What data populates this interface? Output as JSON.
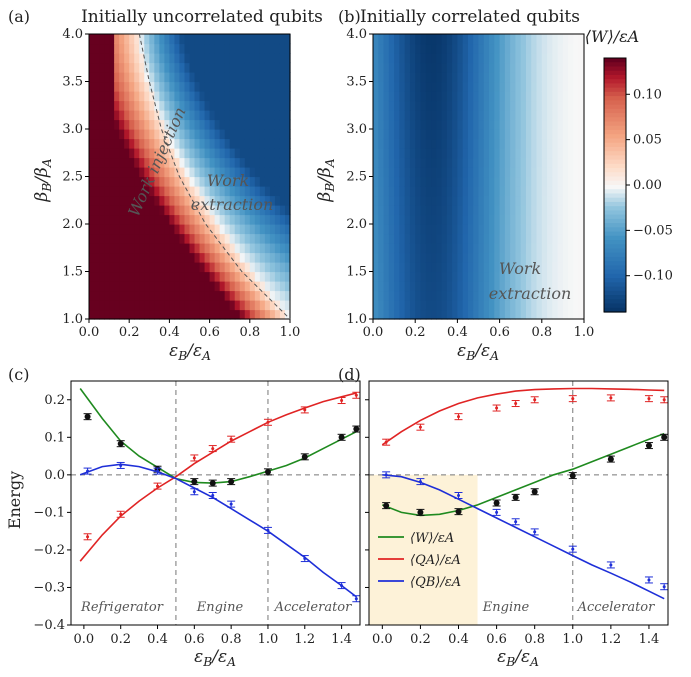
{
  "figure": {
    "panels": [
      "(a)",
      "(b)",
      "(c)",
      "(d)"
    ],
    "titles": {
      "a": "Initially uncorrelated qubits",
      "b": "Initially correlated qubits"
    }
  },
  "colors": {
    "red": "#e02424",
    "blue": "#1e2fd8",
    "green": "#1f8a1f",
    "black": "#111111",
    "highlight": "#fdf2d8",
    "cmap_max": "#67001f",
    "cmap_min": "#053061"
  },
  "chart_data": [
    {
      "panel": "(a)",
      "type": "heatmap",
      "title": "Initially uncorrelated qubits",
      "xlabel": "εB/εA",
      "ylabel": "βB/βA",
      "xlim": [
        0.0,
        1.0
      ],
      "ylim": [
        1.0,
        4.0
      ],
      "x_ticks": [
        "0.0",
        "0.2",
        "0.4",
        "0.6",
        "0.8",
        "1.0"
      ],
      "y_ticks": [
        "1.0",
        "1.5",
        "2.0",
        "2.5",
        "3.0",
        "3.5",
        "4.0"
      ],
      "boundary_curve_eps_B": [
        [
          4.0,
          0.25
        ],
        [
          3.5,
          0.3
        ],
        [
          3.0,
          0.36
        ],
        [
          2.5,
          0.45
        ],
        [
          2.0,
          0.58
        ],
        [
          1.5,
          0.76
        ],
        [
          1.0,
          1.0
        ]
      ],
      "annotations": [
        "Work injection",
        "Work extraction"
      ]
    },
    {
      "panel": "(b)",
      "type": "heatmap",
      "title": "Initially correlated qubits",
      "xlabel": "εB/εA",
      "ylabel": "βB/βA",
      "xlim": [
        0.0,
        1.0
      ],
      "ylim": [
        1.0,
        4.0
      ],
      "x_ticks": [
        "0.0",
        "0.2",
        "0.4",
        "0.6",
        "0.8",
        "1.0"
      ],
      "y_ticks": [
        "1.0",
        "1.5",
        "2.0",
        "2.5",
        "3.0",
        "3.5",
        "4.0"
      ],
      "annotations": [
        "Work extraction"
      ],
      "colorbar": {
        "label": "⟨W⟩/εA",
        "ticks": [
          "0.10",
          "0.05",
          "0.00",
          "−0.05",
          "−0.10"
        ],
        "range": [
          -0.14,
          0.14
        ]
      }
    },
    {
      "panel": "(c)",
      "type": "line",
      "xlabel": "εB/εA",
      "ylabel": "Energy",
      "xlim": [
        -0.07,
        1.5
      ],
      "ylim": [
        -0.4,
        0.25
      ],
      "x_ticks": [
        "0.0",
        "0.2",
        "0.4",
        "0.6",
        "0.8",
        "1.0",
        "1.2",
        "1.4"
      ],
      "y_ticks": [
        "0.2",
        "0.1",
        "0.0",
        "−0.1",
        "−0.2",
        "−0.3",
        "−0.4"
      ],
      "vlines": [
        0.5,
        1.0
      ],
      "regions": [
        "Refrigerator",
        "Engine",
        "Accelerator"
      ],
      "series": [
        {
          "name": "⟨W⟩/εA",
          "color": "#1f8a1f",
          "curve": [
            [
              -0.02,
              0.23
            ],
            [
              0.1,
              0.15
            ],
            [
              0.2,
              0.09
            ],
            [
              0.3,
              0.05
            ],
            [
              0.4,
              0.02
            ],
            [
              0.5,
              -0.01
            ],
            [
              0.6,
              -0.02
            ],
            [
              0.7,
              -0.022
            ],
            [
              0.8,
              -0.018
            ],
            [
              0.9,
              -0.005
            ],
            [
              1.0,
              0.01
            ],
            [
              1.1,
              0.025
            ],
            [
              1.2,
              0.045
            ],
            [
              1.3,
              0.07
            ],
            [
              1.4,
              0.095
            ],
            [
              1.48,
              0.115
            ]
          ],
          "points": [
            [
              0.02,
              0.155
            ],
            [
              0.2,
              0.083
            ],
            [
              0.4,
              0.015
            ],
            [
              0.6,
              -0.018
            ],
            [
              0.7,
              -0.022
            ],
            [
              0.8,
              -0.018
            ],
            [
              1.0,
              0.008
            ],
            [
              1.2,
              0.048
            ],
            [
              1.4,
              0.1
            ],
            [
              1.48,
              0.122
            ]
          ]
        },
        {
          "name": "⟨QA⟩/εA",
          "color": "#e02424",
          "curve": [
            [
              -0.02,
              -0.23
            ],
            [
              0.1,
              -0.16
            ],
            [
              0.2,
              -0.11
            ],
            [
              0.3,
              -0.07
            ],
            [
              0.4,
              -0.035
            ],
            [
              0.5,
              -0.005
            ],
            [
              0.6,
              0.03
            ],
            [
              0.7,
              0.06
            ],
            [
              0.8,
              0.09
            ],
            [
              0.9,
              0.115
            ],
            [
              1.0,
              0.14
            ],
            [
              1.1,
              0.16
            ],
            [
              1.2,
              0.178
            ],
            [
              1.3,
              0.195
            ],
            [
              1.4,
              0.208
            ],
            [
              1.48,
              0.218
            ]
          ],
          "points": [
            [
              0.02,
              -0.165
            ],
            [
              0.2,
              -0.105
            ],
            [
              0.4,
              -0.03
            ],
            [
              0.6,
              0.045
            ],
            [
              0.7,
              0.07
            ],
            [
              0.8,
              0.095
            ],
            [
              1.0,
              0.14
            ],
            [
              1.2,
              0.173
            ],
            [
              1.4,
              0.198
            ],
            [
              1.48,
              0.212
            ]
          ]
        },
        {
          "name": "⟨QB⟩/εA",
          "color": "#1e2fd8",
          "curve": [
            [
              -0.02,
              0.0
            ],
            [
              0.1,
              0.022
            ],
            [
              0.2,
              0.028
            ],
            [
              0.3,
              0.022
            ],
            [
              0.4,
              0.008
            ],
            [
              0.5,
              -0.01
            ],
            [
              0.6,
              -0.035
            ],
            [
              0.7,
              -0.06
            ],
            [
              0.8,
              -0.09
            ],
            [
              0.9,
              -0.12
            ],
            [
              1.0,
              -0.15
            ],
            [
              1.1,
              -0.185
            ],
            [
              1.2,
              -0.22
            ],
            [
              1.3,
              -0.26
            ],
            [
              1.4,
              -0.295
            ],
            [
              1.48,
              -0.325
            ]
          ],
          "points": [
            [
              0.02,
              0.01
            ],
            [
              0.2,
              0.025
            ],
            [
              0.4,
              0.01
            ],
            [
              0.6,
              -0.045
            ],
            [
              0.7,
              -0.055
            ],
            [
              0.8,
              -0.078
            ],
            [
              1.0,
              -0.148
            ],
            [
              1.2,
              -0.223
            ],
            [
              1.4,
              -0.295
            ],
            [
              1.48,
              -0.33
            ]
          ]
        }
      ]
    },
    {
      "panel": "(d)",
      "type": "line",
      "xlabel": "εB/εA",
      "ylabel": "",
      "xlim": [
        -0.07,
        1.5
      ],
      "ylim": [
        -0.4,
        0.25
      ],
      "x_ticks": [
        "0.0",
        "0.2",
        "0.4",
        "0.6",
        "0.8",
        "1.0",
        "1.2",
        "1.4"
      ],
      "vlines": [
        1.0
      ],
      "highlight_x": [
        -0.07,
        0.5
      ],
      "regions": [
        "Engine",
        "Accelerator"
      ],
      "legend": "bottom-left",
      "series": [
        {
          "name": "⟨W⟩/εA",
          "color": "#1f8a1f",
          "curve": [
            [
              0.0,
              -0.08
            ],
            [
              0.1,
              -0.1
            ],
            [
              0.2,
              -0.108
            ],
            [
              0.3,
              -0.105
            ],
            [
              0.4,
              -0.095
            ],
            [
              0.5,
              -0.08
            ],
            [
              0.6,
              -0.06
            ],
            [
              0.7,
              -0.04
            ],
            [
              0.8,
              -0.02
            ],
            [
              0.9,
              0.0
            ],
            [
              1.0,
              0.015
            ],
            [
              1.1,
              0.035
            ],
            [
              1.2,
              0.055
            ],
            [
              1.3,
              0.075
            ],
            [
              1.4,
              0.095
            ],
            [
              1.48,
              0.11
            ]
          ],
          "points": [
            [
              0.02,
              -0.082
            ],
            [
              0.2,
              -0.1
            ],
            [
              0.4,
              -0.098
            ],
            [
              0.6,
              -0.075
            ],
            [
              0.7,
              -0.06
            ],
            [
              0.8,
              -0.045
            ],
            [
              1.0,
              -0.002
            ],
            [
              1.2,
              0.042
            ],
            [
              1.4,
              0.078
            ],
            [
              1.48,
              0.1
            ]
          ]
        },
        {
          "name": "⟨QA⟩/εA",
          "color": "#e02424",
          "curve": [
            [
              0.0,
              0.08
            ],
            [
              0.1,
              0.115
            ],
            [
              0.2,
              0.145
            ],
            [
              0.3,
              0.17
            ],
            [
              0.4,
              0.19
            ],
            [
              0.5,
              0.205
            ],
            [
              0.6,
              0.215
            ],
            [
              0.7,
              0.223
            ],
            [
              0.8,
              0.227
            ],
            [
              0.9,
              0.229
            ],
            [
              1.0,
              0.23
            ],
            [
              1.1,
              0.23
            ],
            [
              1.2,
              0.229
            ],
            [
              1.3,
              0.228
            ],
            [
              1.4,
              0.226
            ],
            [
              1.48,
              0.225
            ]
          ],
          "points": [
            [
              0.02,
              0.087
            ],
            [
              0.2,
              0.127
            ],
            [
              0.4,
              0.155
            ],
            [
              0.6,
              0.178
            ],
            [
              0.7,
              0.19
            ],
            [
              0.8,
              0.2
            ],
            [
              1.0,
              0.203
            ],
            [
              1.2,
              0.205
            ],
            [
              1.4,
              0.203
            ],
            [
              1.48,
              0.2
            ]
          ]
        },
        {
          "name": "⟨QB⟩/εA",
          "color": "#1e2fd8",
          "curve": [
            [
              0.0,
              0.0
            ],
            [
              0.1,
              -0.005
            ],
            [
              0.2,
              -0.02
            ],
            [
              0.3,
              -0.04
            ],
            [
              0.4,
              -0.065
            ],
            [
              0.5,
              -0.09
            ],
            [
              0.6,
              -0.115
            ],
            [
              0.7,
              -0.14
            ],
            [
              0.8,
              -0.165
            ],
            [
              0.9,
              -0.19
            ],
            [
              1.0,
              -0.215
            ],
            [
              1.1,
              -0.24
            ],
            [
              1.2,
              -0.262
            ],
            [
              1.3,
              -0.285
            ],
            [
              1.4,
              -0.31
            ],
            [
              1.48,
              -0.33
            ]
          ],
          "points": [
            [
              0.02,
              0.0
            ],
            [
              0.2,
              -0.018
            ],
            [
              0.4,
              -0.055
            ],
            [
              0.6,
              -0.1
            ],
            [
              0.7,
              -0.125
            ],
            [
              0.8,
              -0.152
            ],
            [
              1.0,
              -0.198
            ],
            [
              1.2,
              -0.24
            ],
            [
              1.4,
              -0.28
            ],
            [
              1.48,
              -0.298
            ]
          ]
        }
      ]
    }
  ]
}
